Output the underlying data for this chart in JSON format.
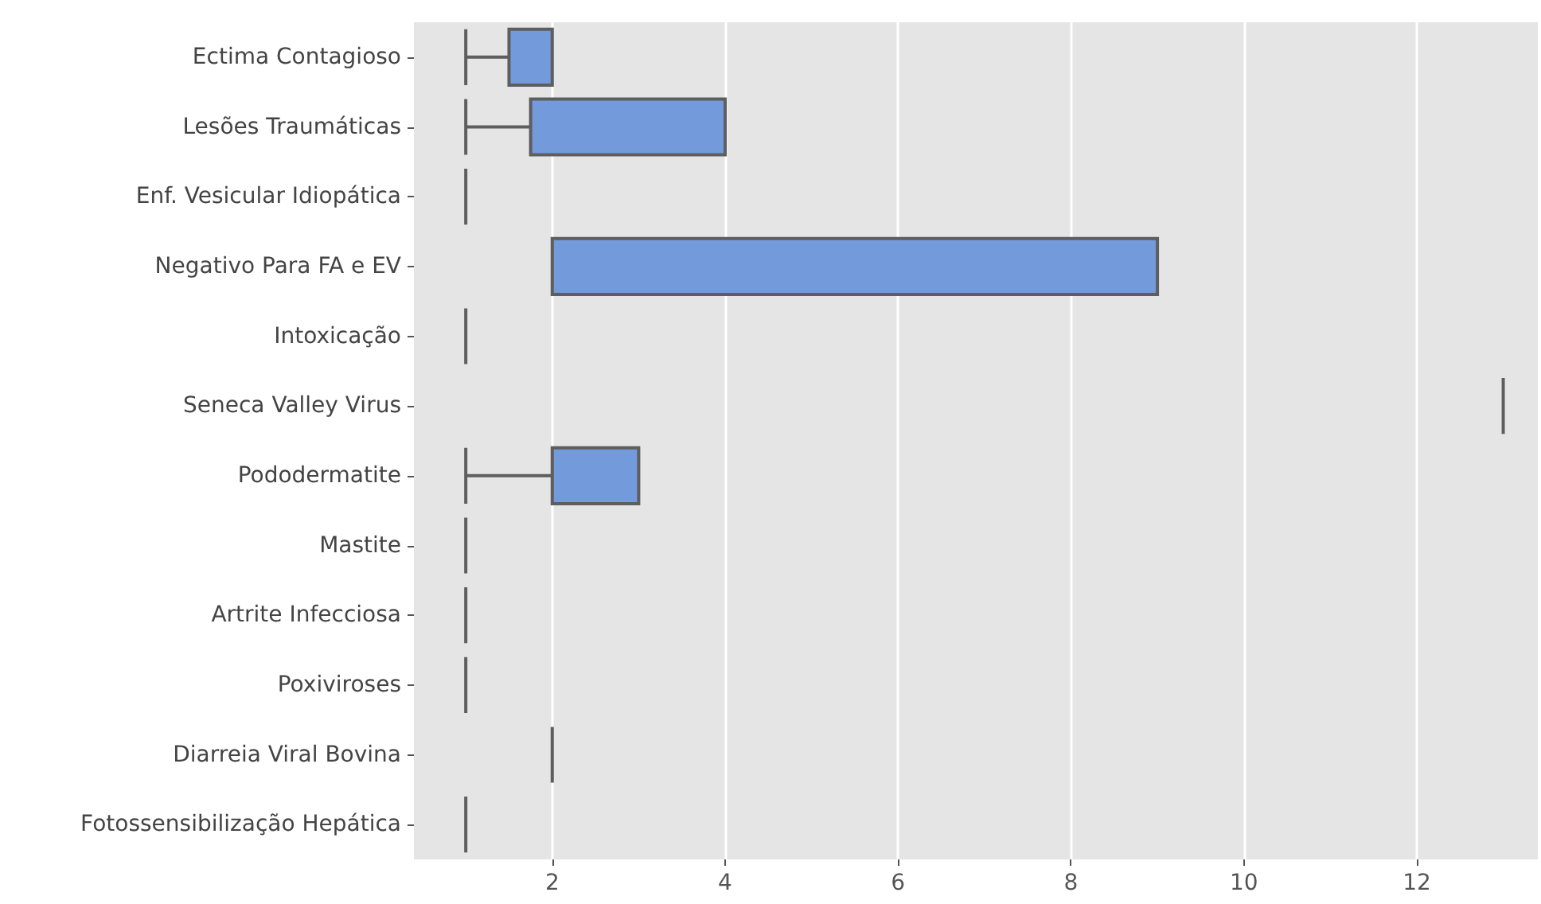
{
  "chart_data": {
    "type": "box",
    "orientation": "horizontal",
    "colors": [
      "#739bdc",
      "#739bdc",
      "#5e5e5e",
      "#739bdc",
      "#5e5e5e",
      "#5e5e5e",
      "#739bdc",
      "#5e5e5e",
      "#5e5e5e",
      "#5e5e5e",
      "#5e5e5e",
      "#5e5e5e"
    ],
    "categories": [
      "Ectima Contagioso",
      "Lesões Traumáticas",
      "Enf. Vesicular Idiopática",
      "Negativo Para FA e EV",
      "Intoxicação",
      "Seneca Valley Virus",
      "Pododermatite",
      "Mastite",
      "Artrite Infecciosa",
      "Poxiviroses",
      "Diarreia Viral Bovina",
      "Fotossensibilização Hepática"
    ],
    "boxes": [
      {
        "low": 1,
        "q1": 1.5,
        "median": 2,
        "q3": 2,
        "high": 2
      },
      {
        "low": 1,
        "q1": 1.75,
        "median": 4,
        "q3": 4,
        "high": 4
      },
      {
        "low": 1,
        "q1": 1,
        "median": 1,
        "q3": 1,
        "high": 1
      },
      {
        "low": 2,
        "q1": 2,
        "median": 9,
        "q3": 9,
        "high": 9
      },
      {
        "low": 1,
        "q1": 1,
        "median": 1,
        "q3": 1,
        "high": 1
      },
      {
        "low": 13,
        "q1": 13,
        "median": 13,
        "q3": 13,
        "high": 13
      },
      {
        "low": 1,
        "q1": 2,
        "median": 3,
        "q3": 3,
        "high": 3
      },
      {
        "low": 1,
        "q1": 1,
        "median": 1,
        "q3": 1,
        "high": 1
      },
      {
        "low": 1,
        "q1": 1,
        "median": 1,
        "q3": 1,
        "high": 1
      },
      {
        "low": 1,
        "q1": 1,
        "median": 1,
        "q3": 1,
        "high": 1
      },
      {
        "low": 2,
        "q1": 2,
        "median": 2,
        "q3": 2,
        "high": 2
      },
      {
        "low": 1,
        "q1": 1,
        "median": 1,
        "q3": 1,
        "high": 1
      }
    ],
    "xlim": [
      0.4,
      13.4
    ],
    "xticks": [
      2,
      4,
      6,
      8,
      10,
      12
    ],
    "grid": "x"
  }
}
